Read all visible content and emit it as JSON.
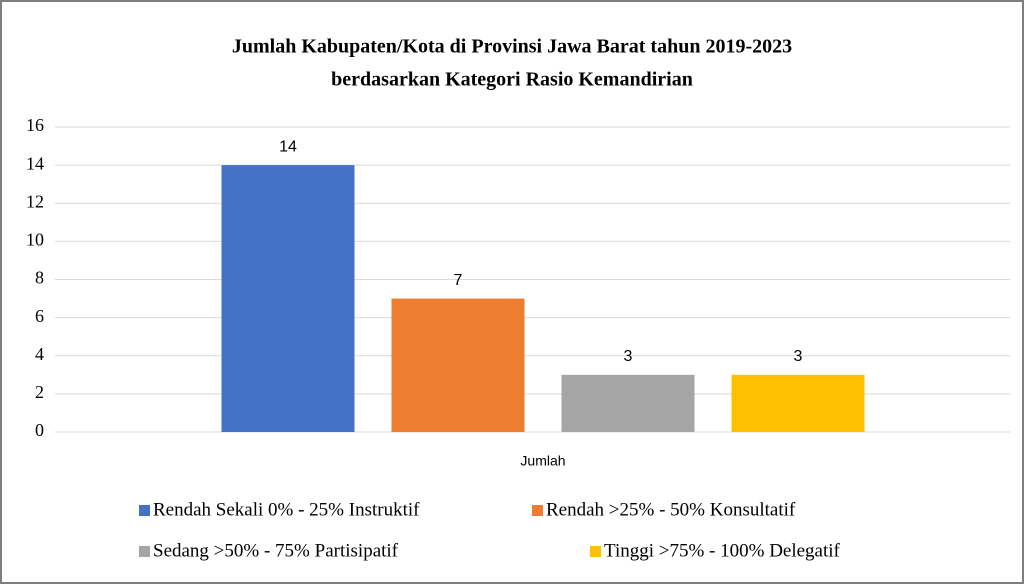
{
  "chart_data": {
    "type": "bar",
    "title": [
      "Jumlah Kabupaten/Kota di Provinsi  Jawa Barat tahun 2019-2023",
      "berdasarkan Kategori Rasio Kemandirian"
    ],
    "categories": [
      "Jumlah"
    ],
    "series": [
      {
        "name": "Rendah Sekali 0% - 25% Instruktif",
        "color": "#4472c4",
        "values": [
          14
        ]
      },
      {
        "name": "Rendah >25% - 50% Konsultatif",
        "color": "#ed7d31",
        "values": [
          7
        ]
      },
      {
        "name": "Sedang >50% - 75% Partisipatif",
        "color": "#a5a5a5",
        "values": [
          3
        ]
      },
      {
        "name": "Tinggi >75% - 100% Delegatif",
        "color": "#ffc000",
        "values": [
          3
        ]
      }
    ],
    "ylim": [
      0,
      16
    ],
    "yticks": [
      0,
      2,
      4,
      6,
      8,
      10,
      12,
      14,
      16
    ],
    "grid": true,
    "legend": "bottom"
  }
}
